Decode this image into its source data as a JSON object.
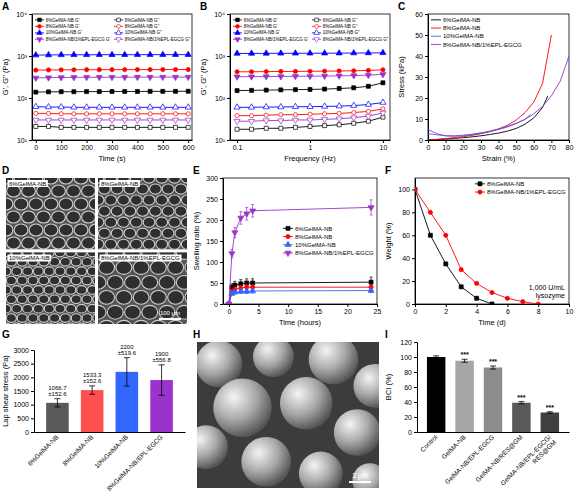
{
  "chart_data": [
    {
      "panel": "A",
      "type": "line",
      "x_label": "Time (s)",
      "y_label": "G', G'' (Pa)",
      "log": "y",
      "legend": "upper left",
      "x": [
        0,
        50,
        100,
        150,
        200,
        250,
        300,
        350,
        400,
        450,
        500,
        550,
        600
      ],
      "xlim": [
        -15,
        615
      ],
      "xticks": [
        0,
        100,
        200,
        300,
        400,
        500,
        600
      ],
      "ylim": [
        10,
        10000
      ],
      "yticks": [
        {
          "value": 10,
          "label": "10¹"
        },
        {
          "value": 100,
          "label": "10²"
        },
        {
          "value": 1000,
          "label": "10³"
        },
        {
          "value": 10000,
          "label": "10⁴"
        }
      ],
      "series": [
        {
          "name": "6%GelMA-NB G'",
          "color": "#000000",
          "marker": "square",
          "values": [
            138,
            140,
            141,
            141,
            142,
            142,
            143,
            143,
            143,
            144,
            144,
            144,
            145
          ]
        },
        {
          "name": "8%GelMA-NB G'",
          "color": "#ff0000",
          "marker": "circle",
          "values": [
            460,
            465,
            468,
            470,
            471,
            472,
            473,
            474,
            474,
            475,
            475,
            476,
            476
          ]
        },
        {
          "name": "10%GelMA-NB G'",
          "color": "#0000ff",
          "marker": "triangle",
          "values": [
            1050,
            1060,
            1065,
            1068,
            1070,
            1072,
            1073,
            1074,
            1075,
            1076,
            1076,
            1077,
            1077
          ]
        },
        {
          "name": "8%GelMA-NB/1%EPL-EGCG G'",
          "color": "#9933cc",
          "marker": "triangle-down",
          "values": [
            300,
            305,
            308,
            310,
            311,
            312,
            313,
            313,
            314,
            314,
            315,
            315,
            315
          ]
        },
        {
          "name": "6%GelMA-NB G''",
          "color": "#000000",
          "marker": "square-open",
          "values": [
            21,
            21,
            20,
            20,
            20,
            20,
            20,
            20,
            20,
            20,
            20,
            20,
            20
          ]
        },
        {
          "name": "8%GelMA-NB G''",
          "color": "#ff0000",
          "marker": "circle-open",
          "values": [
            43,
            43,
            42,
            42,
            42,
            42,
            42,
            42,
            42,
            42,
            42,
            42,
            42
          ]
        },
        {
          "name": "10%GelMA-NB G''",
          "color": "#0000ff",
          "marker": "triangle-open",
          "values": [
            62,
            61,
            61,
            60,
            60,
            60,
            60,
            60,
            60,
            60,
            60,
            60,
            60
          ]
        },
        {
          "name": "8%GelMA-NB/1%EPL-EGCG G''",
          "color": "#9933cc",
          "marker": "triangle-down-open",
          "values": [
            30,
            30,
            30,
            30,
            30,
            30,
            30,
            30,
            30,
            30,
            30,
            30,
            30
          ]
        }
      ]
    },
    {
      "panel": "B",
      "type": "line",
      "x_label": "Frequency (Hz)",
      "y_label": "G', G'' (Pa)",
      "log": true,
      "legend": "upper left",
      "x": [
        0.1,
        0.158,
        0.251,
        0.398,
        0.631,
        1,
        1.585,
        2.512,
        3.981,
        6.31,
        10
      ],
      "xlim": [
        0.08,
        12.5
      ],
      "xticks": [
        0.1,
        1,
        10
      ],
      "ylim": [
        10,
        10000
      ],
      "yticks": [
        {
          "value": 10,
          "label": "10¹"
        },
        {
          "value": 100,
          "label": "10²"
        },
        {
          "value": 1000,
          "label": "10³"
        },
        {
          "value": 10000,
          "label": "10⁴"
        }
      ],
      "series": [
        {
          "name": "6%GelMA-NB G'",
          "color": "#000000",
          "marker": "square",
          "values": [
            150,
            152,
            154,
            156,
            158,
            160,
            163,
            168,
            175,
            190,
            230
          ]
        },
        {
          "name": "8%GelMA-NB G'",
          "color": "#ff0000",
          "marker": "circle",
          "values": [
            420,
            422,
            425,
            428,
            430,
            433,
            436,
            440,
            445,
            452,
            470
          ]
        },
        {
          "name": "10%GelMA-NB G'",
          "color": "#0000ff",
          "marker": "triangle",
          "values": [
            1150,
            1152,
            1155,
            1158,
            1160,
            1163,
            1166,
            1170,
            1175,
            1180,
            1190
          ]
        },
        {
          "name": "8%GelMA-NB/1%EPL-EGCG G'",
          "color": "#9933cc",
          "marker": "triangle-down",
          "values": [
            320,
            322,
            324,
            326,
            328,
            330,
            333,
            337,
            342,
            350,
            365
          ]
        },
        {
          "name": "6%GelMA-NB G''",
          "color": "#000000",
          "marker": "square-open",
          "values": [
            18,
            18,
            19,
            19,
            20,
            21,
            22,
            23,
            25,
            28,
            35
          ]
        },
        {
          "name": "8%GelMA-NB G''",
          "color": "#ff0000",
          "marker": "circle-open",
          "values": [
            38,
            38,
            39,
            40,
            40,
            41,
            42,
            43,
            45,
            48,
            55
          ]
        },
        {
          "name": "10%GelMA-NB G''",
          "color": "#0000ff",
          "marker": "triangle-open",
          "values": [
            60,
            60,
            61,
            61,
            62,
            62,
            63,
            64,
            66,
            70,
            78
          ]
        },
        {
          "name": "8%GelMA-NB/1%EPL-EGCG G''",
          "color": "#9933cc",
          "marker": "triangle-down-open",
          "values": [
            28,
            28,
            29,
            29,
            30,
            30,
            31,
            32,
            34,
            37,
            44
          ]
        }
      ]
    },
    {
      "panel": "C",
      "type": "line",
      "x_label": "Strain (%)",
      "y_label": "Stress (kPa)",
      "legend": "upper left",
      "xlim": [
        0,
        80
      ],
      "xticks": [
        0,
        10,
        20,
        30,
        40,
        50,
        60,
        70,
        80
      ],
      "ylim": [
        0,
        60
      ],
      "yticks": [
        0,
        10,
        20,
        30,
        40,
        50,
        60
      ],
      "series": [
        {
          "name": "6%GelMA-NB",
          "color": "#000000",
          "x": [
            0,
            5,
            10,
            15,
            20,
            25,
            30,
            35,
            40,
            45,
            50,
            55,
            60,
            65,
            68
          ],
          "values": [
            0,
            0.2,
            0.5,
            0.8,
            1.1,
            1.5,
            2,
            2.6,
            3.3,
            4.2,
            5.5,
            7.5,
            10.5,
            15.5,
            21
          ]
        },
        {
          "name": "8%GelMA-NB",
          "color": "#ff0000",
          "x": [
            0,
            5,
            10,
            15,
            20,
            25,
            30,
            35,
            40,
            45,
            50,
            55,
            60,
            65,
            70
          ],
          "values": [
            0,
            0.3,
            0.7,
            1.1,
            1.6,
            2.2,
            3,
            4,
            5.3,
            7,
            9.5,
            13,
            18,
            27,
            50
          ]
        },
        {
          "name": "10%GelMA-NB",
          "color": "#3366ff",
          "x": [
            0,
            5,
            10,
            15,
            20,
            25,
            30,
            35,
            40,
            45,
            50,
            55,
            58
          ],
          "values": [
            3,
            2.5,
            2,
            2,
            2.3,
            2.8,
            3.4,
            4.2,
            5.2,
            6.5,
            8,
            9.8,
            12
          ]
        },
        {
          "name": "8%GelMA-NB/1%EPL-EGCG",
          "color": "#9933cc",
          "x": [
            0,
            5,
            10,
            15,
            20,
            25,
            30,
            35,
            40,
            45,
            50,
            55,
            60,
            65,
            70,
            75,
            80
          ],
          "values": [
            5,
            3,
            2,
            1.8,
            2,
            2.5,
            3.2,
            4,
            5,
            6.2,
            7.8,
            9.8,
            12.5,
            16,
            21,
            28,
            40
          ]
        }
      ]
    },
    {
      "panel": "E",
      "type": "line",
      "x_label": "Time (hours)",
      "y_label": "Swelling ratio (%)",
      "legend": "center right",
      "x": [
        0,
        0.5,
        1,
        2,
        3,
        4,
        24
      ],
      "xlim": [
        -1,
        25
      ],
      "xticks": [
        0,
        5,
        10,
        15,
        20,
        25
      ],
      "ylim": [
        0,
        300
      ],
      "yticks": [
        0,
        50,
        100,
        150,
        200,
        250,
        300
      ],
      "series": [
        {
          "name": "6%GelMA-NB",
          "color": "#000000",
          "marker": "square",
          "values": [
            0,
            40,
            45,
            48,
            50,
            50,
            52
          ],
          "errors": [
            0,
            8,
            9,
            10,
            10,
            10,
            12
          ]
        },
        {
          "name": "8%GelMA-NB",
          "color": "#ff0000",
          "marker": "circle",
          "values": [
            0,
            30,
            35,
            38,
            40,
            40,
            40
          ],
          "errors": [
            0,
            5,
            6,
            6,
            6,
            6,
            6
          ]
        },
        {
          "name": "10%GelMA-NB",
          "color": "#3366ff",
          "marker": "triangle",
          "values": [
            0,
            25,
            28,
            30,
            30,
            31,
            32
          ],
          "errors": [
            0,
            4,
            4,
            5,
            5,
            5,
            5
          ]
        },
        {
          "name": "8%GelMA-NB/1%EPL-EGCG",
          "color": "#9933cc",
          "marker": "triangle-down",
          "values": [
            0,
            120,
            170,
            205,
            215,
            222,
            230
          ],
          "errors": [
            0,
            10,
            12,
            15,
            15,
            15,
            18
          ]
        }
      ]
    },
    {
      "panel": "F",
      "type": "line",
      "x_label": "Time (d)",
      "y_label": "Weight (%)",
      "legend": "upper right",
      "annotation": [
        "1,000 U/mL",
        "lysozyme"
      ],
      "xlim": [
        0,
        10
      ],
      "xticks": [
        0,
        2,
        4,
        6,
        8,
        10
      ],
      "ylim": [
        0,
        110
      ],
      "yticks": [
        0,
        20,
        40,
        60,
        80,
        100
      ],
      "series": [
        {
          "name": "8%GelMA-NB",
          "color": "#000000",
          "marker": "square",
          "x": [
            0,
            1,
            2,
            3,
            4,
            5
          ],
          "values": [
            100,
            60,
            35,
            15,
            5,
            0
          ]
        },
        {
          "name": "8%GelMA-NB/1%EPL-EGCG",
          "color": "#ff0000",
          "marker": "circle",
          "x": [
            0,
            1,
            2,
            3,
            4,
            5,
            6,
            7,
            8
          ],
          "values": [
            100,
            80,
            60,
            30,
            18,
            10,
            5,
            2,
            0
          ]
        }
      ]
    },
    {
      "panel": "G",
      "type": "bar",
      "y_label": "Lap shear stress (Pa)",
      "data_labels": true,
      "categories": [
        "6%GelMA-NB",
        "8%GelMA-NB",
        "10%GelMA-NB",
        "8%GelMA-NB/EPL-EGCG"
      ],
      "values": [
        1066.7,
        1533.3,
        2200,
        1900
      ],
      "value_labels": [
        "1066.7",
        "1533.3",
        "2200",
        "1900"
      ],
      "errors": [
        152.6,
        152.6,
        519.6,
        556.8
      ],
      "error_labels": [
        "±152.6",
        "±152.6",
        "±519.6",
        "±556.8"
      ],
      "colors": [
        "#595959",
        "#ff5050",
        "#3366ff",
        "#9933cc"
      ],
      "ylim": [
        0,
        3000
      ],
      "yticks": [
        0,
        500,
        1000,
        1500,
        2000,
        2500,
        3000
      ]
    },
    {
      "panel": "I",
      "type": "bar",
      "y_label": "BCI (%)",
      "categories": [
        "Control",
        "GelMA-NB",
        "GelMA-NB/EPL-EGCG",
        "GelMA-NB/RES@GM",
        "GelMA-NB/EPL-EGCG/RES@GM"
      ],
      "values": [
        100,
        95,
        86,
        39,
        26
      ],
      "errors": [
        1.5,
        2,
        2,
        1.5,
        1
      ],
      "significance": [
        null,
        "***",
        "***",
        "***",
        "***"
      ],
      "colors": [
        "#000000",
        "#a6a6a6",
        "#8c8c8c",
        "#595959",
        "#404040"
      ],
      "ylim": [
        0,
        120
      ],
      "yticks": [
        0,
        20,
        40,
        60,
        80,
        100,
        120
      ]
    }
  ],
  "images": [
    {
      "panel": "D",
      "labels": [
        "6%GelMA-NB",
        "8%GelMA-NB",
        "10%GelMA-NB",
        "8%GelMA-NB/1%EPL-EGCG"
      ],
      "scale_bar": "100 μm"
    },
    {
      "panel": "H",
      "scale_bar": "3 μm"
    }
  ]
}
